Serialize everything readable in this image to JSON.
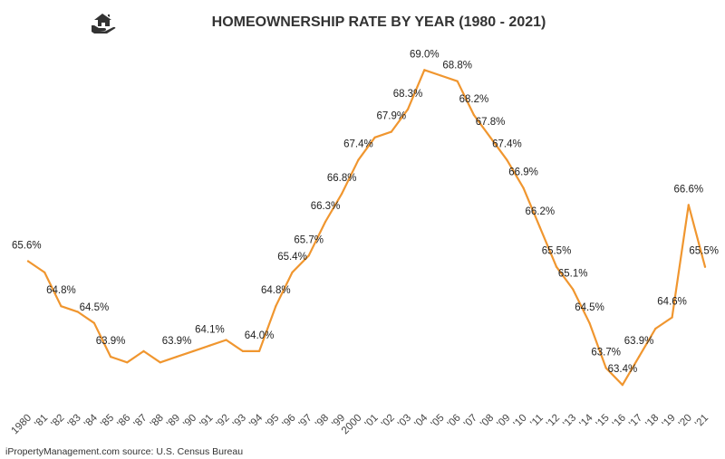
{
  "title": "HOMEOWNERSHIP RATE BY YEAR (1980 - 2021)",
  "source": "iPropertyManagement.com source: U.S. Census Bureau",
  "logo_icon": "house-in-hand-icon",
  "colors": {
    "line": "#F0962F",
    "text": "#222222",
    "title": "#333333"
  },
  "chart_data": {
    "type": "line",
    "title": "HOMEOWNERSHIP RATE BY YEAR (1980 - 2021)",
    "xlabel": "",
    "ylabel": "",
    "grid": false,
    "legend": "none",
    "x": [
      1980,
      1981,
      1982,
      1983,
      1984,
      1985,
      1986,
      1987,
      1988,
      1989,
      1990,
      1991,
      1992,
      1993,
      1994,
      1995,
      1996,
      1997,
      1998,
      1999,
      2000,
      2001,
      2002,
      2003,
      2004,
      2005,
      2006,
      2007,
      2008,
      2009,
      2010,
      2011,
      2012,
      2013,
      2014,
      2015,
      2016,
      2017,
      2018,
      2019,
      2020,
      2021
    ],
    "x_tick_labels": [
      "1980",
      "'81",
      "'82",
      "'83",
      "'84",
      "'85",
      "'86",
      "'87",
      "'88",
      "'89",
      "'90",
      "'91",
      "'92",
      "'93",
      "'94",
      "'95",
      "'96",
      "'97",
      "'98",
      "'99",
      "2000",
      "'01",
      "'02",
      "'03",
      "'04",
      "'05",
      "'06",
      "'07",
      "'08",
      "'09",
      "'10",
      "'11",
      "'12",
      "'13",
      "'14",
      "'15",
      "'16",
      "'17",
      "'18",
      "'19",
      "'20",
      "'21"
    ],
    "y": [
      65.6,
      65.4,
      64.8,
      64.7,
      64.5,
      63.9,
      63.8,
      64.0,
      63.8,
      63.9,
      64.0,
      64.1,
      64.2,
      64.0,
      64.0,
      64.8,
      65.4,
      65.7,
      66.3,
      66.8,
      67.4,
      67.8,
      67.9,
      68.3,
      69.0,
      68.9,
      68.8,
      68.2,
      67.8,
      67.4,
      66.9,
      66.2,
      65.5,
      65.1,
      64.5,
      63.7,
      63.4,
      63.9,
      64.4,
      64.6,
      66.6,
      65.5
    ],
    "data_labels": [
      {
        "year": 1980,
        "label": "65.6%"
      },
      {
        "year": 1982,
        "label": "64.8%"
      },
      {
        "year": 1984,
        "label": "64.5%"
      },
      {
        "year": 1985,
        "label": "63.9%"
      },
      {
        "year": 1989,
        "label": "63.9%"
      },
      {
        "year": 1991,
        "label": "64.1%"
      },
      {
        "year": 1994,
        "label": "64.0%"
      },
      {
        "year": 1995,
        "label": "64.8%"
      },
      {
        "year": 1996,
        "label": "65.4%"
      },
      {
        "year": 1997,
        "label": "65.7%"
      },
      {
        "year": 1998,
        "label": "66.3%"
      },
      {
        "year": 1999,
        "label": "66.8%"
      },
      {
        "year": 2000,
        "label": "67.4%"
      },
      {
        "year": 2002,
        "label": "67.9%"
      },
      {
        "year": 2003,
        "label": "68.3%"
      },
      {
        "year": 2004,
        "label": "69.0%"
      },
      {
        "year": 2006,
        "label": "68.8%"
      },
      {
        "year": 2007,
        "label": "68.2%"
      },
      {
        "year": 2008,
        "label": "67.8%"
      },
      {
        "year": 2009,
        "label": "67.4%"
      },
      {
        "year": 2010,
        "label": "66.9%"
      },
      {
        "year": 2011,
        "label": "66.2%"
      },
      {
        "year": 2012,
        "label": "65.5%"
      },
      {
        "year": 2013,
        "label": "65.1%"
      },
      {
        "year": 2014,
        "label": "64.5%"
      },
      {
        "year": 2015,
        "label": "63.7%"
      },
      {
        "year": 2016,
        "label": "63.4%"
      },
      {
        "year": 2017,
        "label": "63.9%"
      },
      {
        "year": 2019,
        "label": "64.6%"
      },
      {
        "year": 2020,
        "label": "66.6%"
      },
      {
        "year": 2021,
        "label": "65.5%"
      }
    ],
    "ylim": [
      63.0,
      69.6
    ]
  }
}
